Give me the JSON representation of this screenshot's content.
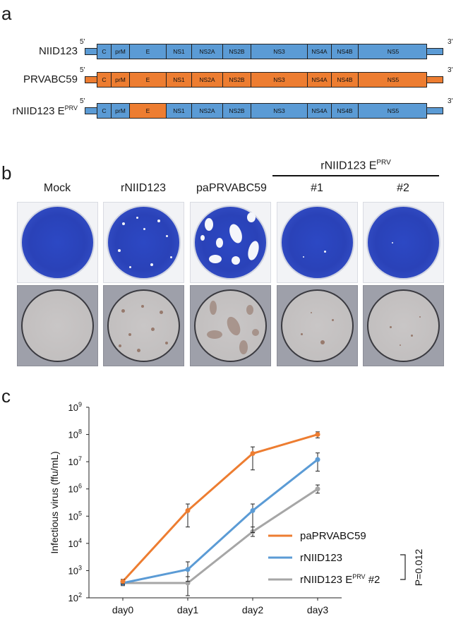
{
  "panel_a": {
    "letter": "a",
    "end5": "5'",
    "end3": "3'",
    "constructs": [
      {
        "name": "NIID123",
        "e_color": "#5b9bd5",
        "color": "#5b9bd5"
      },
      {
        "name": "PRVABC59",
        "e_color": "#ed7d31",
        "color": "#ed7d31"
      },
      {
        "name": "rNIID123 E",
        "name_sup": "PRV",
        "e_color": "#ed7d31",
        "color": "#5b9bd5"
      }
    ],
    "segments": [
      "C",
      "prM",
      "E",
      "NS1",
      "NS2A",
      "NS2B",
      "NS3",
      "NS4A",
      "NS4B",
      "NS5"
    ]
  },
  "panel_b": {
    "letter": "b",
    "group_label": "rNIID123 E",
    "group_label_sup": "PRV",
    "columns": [
      "Mock",
      "rNIID123",
      "paPRVABC59",
      "#1",
      "#2"
    ]
  },
  "panel_c": {
    "letter": "c",
    "chart_data": {
      "type": "line",
      "ylabel": "Infectious virus (ffu/mL)",
      "yscale": "log",
      "ylim": [
        100,
        1000000000
      ],
      "yticks": [
        "10^2",
        "10^3",
        "10^4",
        "10^5",
        "10^6",
        "10^7",
        "10^8",
        "10^9"
      ],
      "categories": [
        "day0",
        "day1",
        "day2",
        "day3"
      ],
      "legend_position": "bottom-right",
      "series": [
        {
          "name": "paPRVABC59",
          "name_sup": "",
          "name_suffix": "",
          "color": "#ed7d31",
          "values": [
            400,
            160000,
            20000000,
            100000000
          ],
          "err_low": [
            320,
            40000,
            5000000,
            75000000
          ],
          "err_high": [
            480,
            280000,
            35000000,
            125000000
          ]
        },
        {
          "name": "rNIID123",
          "name_sup": "",
          "name_suffix": "",
          "color": "#5b9bd5",
          "values": [
            350,
            1100,
            160000,
            12000000
          ],
          "err_low": [
            280,
            400,
            25000,
            4500000
          ],
          "err_high": [
            420,
            2100,
            280000,
            21000000
          ]
        },
        {
          "name": "rNIID123 E",
          "name_sup": "PRV",
          "name_suffix": " #2",
          "color": "#a6a6a6",
          "values": [
            350,
            350,
            27000,
            1000000
          ],
          "err_low": [
            300,
            120,
            18000,
            700000
          ],
          "err_high": [
            400,
            600,
            40000,
            1400000
          ]
        }
      ],
      "annotation": "P=0.012"
    }
  }
}
